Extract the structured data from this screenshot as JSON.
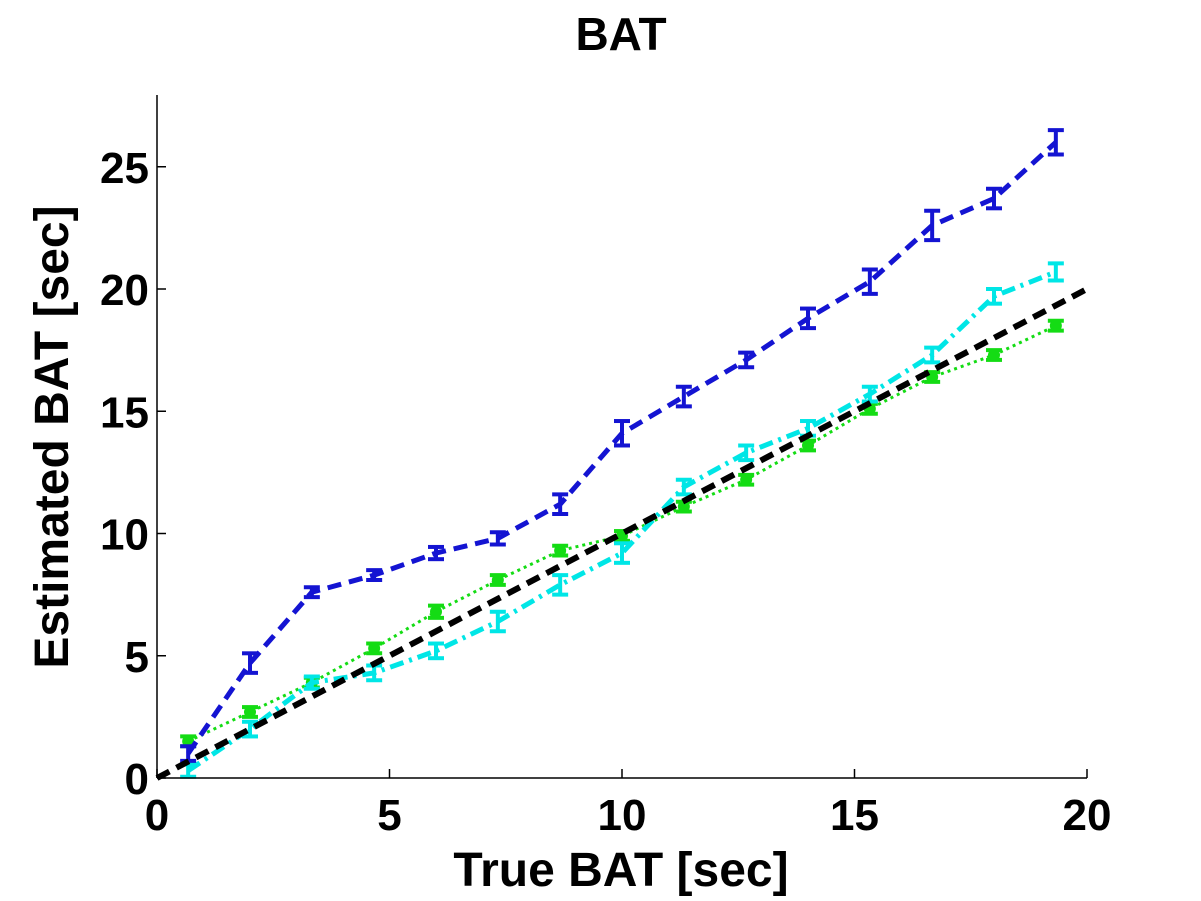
{
  "chart_data": {
    "type": "line",
    "title": "BAT",
    "xlabel": "True BAT [sec]",
    "ylabel": "Estimated BAT [sec]",
    "xlim": [
      0,
      20
    ],
    "ylim": [
      0,
      28
    ],
    "xticks": [
      "0",
      "5",
      "10",
      "15",
      "20"
    ],
    "yticks": [
      "0",
      "5",
      "10",
      "15",
      "20",
      "25"
    ],
    "grid": false,
    "legend": "none",
    "series": [
      {
        "style": "dashed",
        "color": "#1414d2",
        "marker": "errorbar",
        "x": [
          0.67,
          2.0,
          3.33,
          4.67,
          6.0,
          7.33,
          8.67,
          10.0,
          11.33,
          12.67,
          14.0,
          15.33,
          16.67,
          18.0,
          19.33
        ],
        "y": [
          1.0,
          4.7,
          7.6,
          8.3,
          9.2,
          9.8,
          11.2,
          14.1,
          15.6,
          17.1,
          18.8,
          20.3,
          22.6,
          23.7,
          26.0
        ],
        "err": [
          0.3,
          0.4,
          0.2,
          0.2,
          0.25,
          0.25,
          0.4,
          0.5,
          0.4,
          0.3,
          0.4,
          0.5,
          0.6,
          0.4,
          0.5
        ]
      },
      {
        "style": "dash-dot",
        "color": "#00e6e6",
        "marker": "errorbar",
        "x": [
          0.67,
          2.0,
          3.33,
          4.67,
          6.0,
          7.33,
          8.67,
          10.0,
          11.33,
          12.67,
          14.0,
          15.33,
          16.67,
          18.0,
          19.33
        ],
        "y": [
          0.3,
          2.0,
          3.9,
          4.3,
          5.2,
          6.4,
          7.9,
          9.2,
          11.9,
          13.3,
          14.3,
          15.7,
          17.3,
          19.7,
          20.7
        ],
        "err": [
          0.25,
          0.3,
          0.25,
          0.3,
          0.3,
          0.4,
          0.4,
          0.4,
          0.3,
          0.3,
          0.3,
          0.3,
          0.3,
          0.3,
          0.35
        ]
      },
      {
        "style": "dotted",
        "color": "#14dc14",
        "marker": "errorbar",
        "x": [
          0.67,
          2.0,
          3.33,
          4.67,
          6.0,
          7.33,
          8.67,
          10.0,
          11.33,
          12.67,
          14.0,
          15.33,
          16.67,
          18.0,
          19.33
        ],
        "y": [
          1.5,
          2.7,
          3.9,
          5.3,
          6.8,
          8.1,
          9.3,
          9.9,
          11.1,
          12.2,
          13.6,
          15.1,
          16.4,
          17.3,
          18.5
        ],
        "err": [
          0.2,
          0.2,
          0.2,
          0.2,
          0.25,
          0.2,
          0.2,
          0.2,
          0.2,
          0.2,
          0.2,
          0.2,
          0.2,
          0.2,
          0.2
        ]
      },
      {
        "style": "dashed",
        "color": "#000000",
        "marker": "none",
        "x": [
          0,
          20
        ],
        "y": [
          0,
          20
        ]
      }
    ]
  }
}
